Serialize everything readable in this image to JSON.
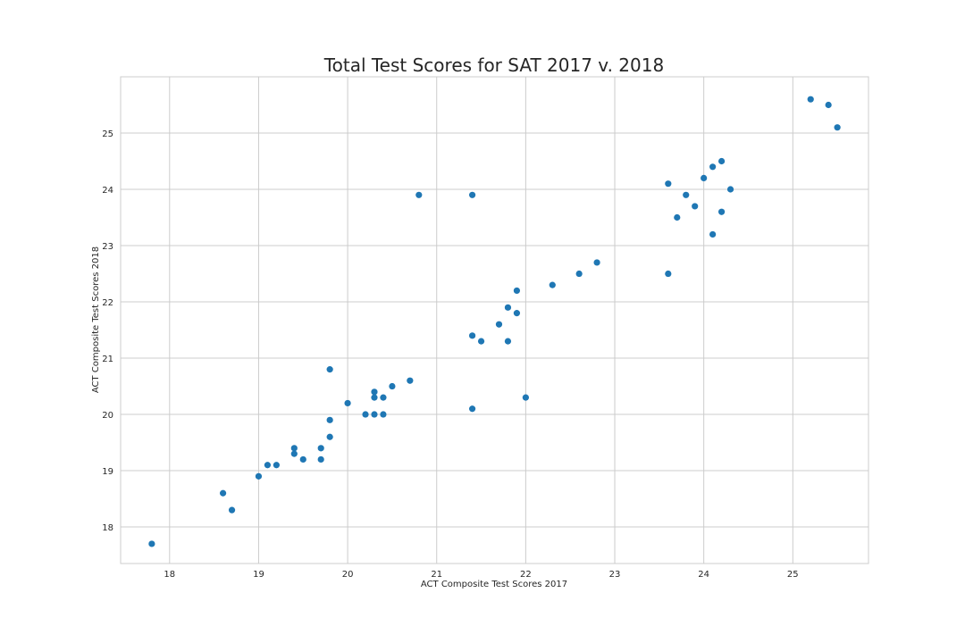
{
  "chart_data": {
    "type": "scatter",
    "title": "Total Test Scores for SAT 2017 v. 2018",
    "xlabel": "ACT Composite Test Scores 2017",
    "ylabel": "ACT Composite Test Scores 2018",
    "xlim": [
      17.45,
      25.85
    ],
    "ylim": [
      17.35,
      26.0
    ],
    "xticks": [
      18,
      19,
      20,
      21,
      22,
      23,
      24,
      25
    ],
    "yticks": [
      18,
      19,
      20,
      21,
      22,
      23,
      24,
      25
    ],
    "grid": true,
    "color": "#1f77b4",
    "points": [
      [
        17.8,
        17.7
      ],
      [
        18.6,
        18.6
      ],
      [
        18.7,
        18.3
      ],
      [
        19.0,
        18.9
      ],
      [
        19.1,
        19.1
      ],
      [
        19.2,
        19.1
      ],
      [
        19.4,
        19.4
      ],
      [
        19.4,
        19.3
      ],
      [
        19.5,
        19.2
      ],
      [
        19.7,
        19.4
      ],
      [
        19.7,
        19.2
      ],
      [
        19.8,
        19.9
      ],
      [
        19.8,
        19.6
      ],
      [
        19.8,
        20.8
      ],
      [
        20.0,
        20.2
      ],
      [
        20.2,
        20.0
      ],
      [
        20.3,
        20.4
      ],
      [
        20.3,
        20.3
      ],
      [
        20.3,
        20.0
      ],
      [
        20.4,
        20.3
      ],
      [
        20.4,
        20.0
      ],
      [
        20.5,
        20.5
      ],
      [
        20.7,
        20.6
      ],
      [
        20.8,
        23.9
      ],
      [
        21.4,
        23.9
      ],
      [
        21.4,
        21.4
      ],
      [
        21.4,
        20.1
      ],
      [
        21.5,
        21.3
      ],
      [
        21.7,
        21.6
      ],
      [
        21.8,
        21.9
      ],
      [
        21.8,
        21.3
      ],
      [
        21.9,
        22.2
      ],
      [
        21.9,
        21.8
      ],
      [
        22.0,
        20.3
      ],
      [
        22.3,
        22.3
      ],
      [
        22.6,
        22.5
      ],
      [
        22.8,
        22.7
      ],
      [
        23.6,
        24.1
      ],
      [
        23.6,
        22.5
      ],
      [
        23.7,
        23.5
      ],
      [
        23.8,
        23.9
      ],
      [
        23.9,
        23.7
      ],
      [
        24.0,
        24.2
      ],
      [
        24.1,
        24.4
      ],
      [
        24.1,
        23.2
      ],
      [
        24.2,
        24.5
      ],
      [
        24.2,
        23.6
      ],
      [
        24.3,
        24.0
      ],
      [
        25.2,
        25.6
      ],
      [
        25.4,
        25.5
      ],
      [
        25.5,
        25.1
      ]
    ]
  }
}
